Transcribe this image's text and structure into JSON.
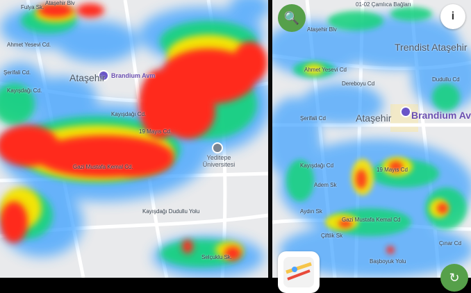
{
  "left_map": {
    "labels": {
      "atasehir": "Ataşehir",
      "brandium": "Brandium Avm",
      "yeditepe": "Yeditepe Üniversitesi",
      "gazi_mustafa_kemal": "Gazi Mustafa Kemal Cd.",
      "kayisdagi": "Kayışdağı Cd.",
      "ahmet_yesevi": "Ahmet Yesevi Cd.",
      "serifali": "Şerifali Cd.",
      "kayisdagi_rd": "Kayışdağı Dudullu Yolu",
      "selcuk": "Selçuklu Sk.",
      "n19_mayis": "19 Mayıs Cd.",
      "fulya": "Fulya Sk.",
      "atasehir_blv": "Ataşehir Blv",
      "kayisdagi_cd2": "Kayışdağı Cd."
    }
  },
  "right_map": {
    "labels": {
      "atasehir": "Ataşehir",
      "brandium": "Brandium Avm",
      "trendist": "Trendist Ataşehir",
      "atasehir_blv": "Ataşehir Blv",
      "ahmet_yesevi": "Ahmet Yesevi Cd",
      "dereboyu": "Dereboyu Cd",
      "dudullu": "Dudullu Cd",
      "serifali": "Şerifali Cd",
      "kayisdagi": "Kayışdağı Cd",
      "adem": "Adem Sk",
      "n19_mayis": "19 Mayıs Cd",
      "aydin": "Aydın Sk",
      "gazi_mustafa_kemal": "Gazi Mustafa Kemal Cd",
      "basboyuk": "Başboyuk Yolu",
      "cinar": "Çınar Cd",
      "ciftlik": "Çiftlik Sk",
      "top": "01-02 Çamlıca Bağları"
    }
  },
  "buttons": {
    "search_icon": "🔍",
    "info_icon": "i",
    "action_icon": "↻"
  },
  "colors": {
    "high": "#ff2a1a",
    "mid": "#ffe500",
    "low": "#3aa0ff",
    "water_green": "#19d37a",
    "button_green": "#56a04a"
  }
}
